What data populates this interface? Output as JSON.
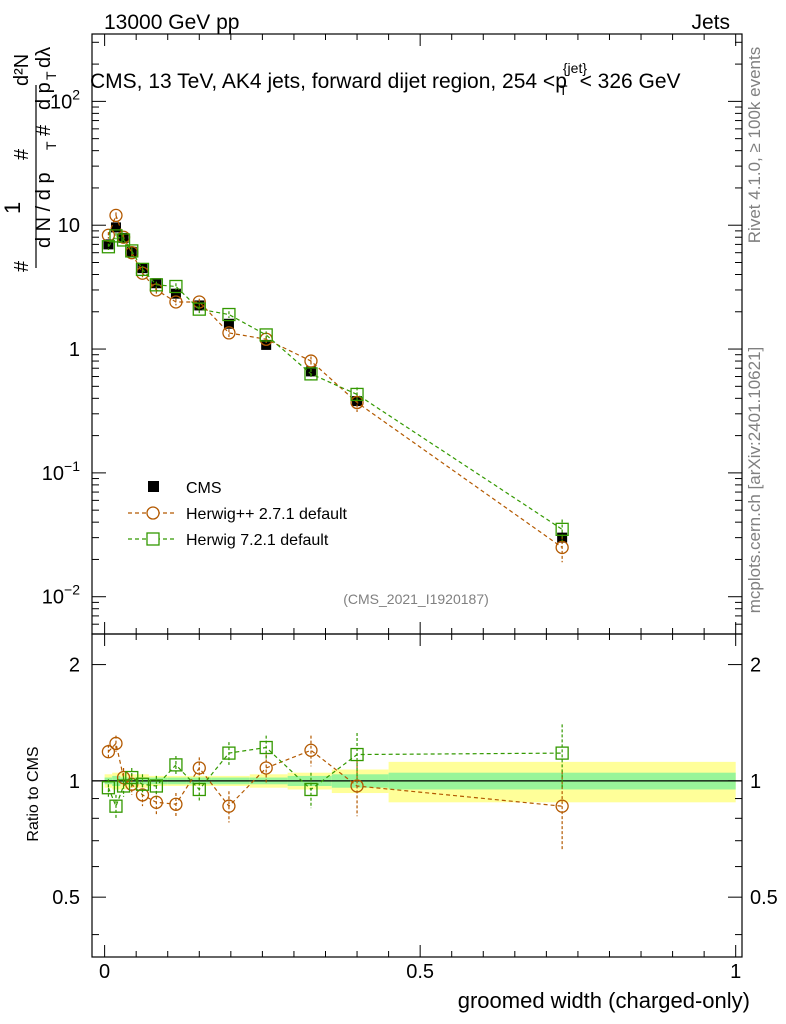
{
  "header": {
    "left": "13000 GeV pp",
    "right": "Jets"
  },
  "side_labels": {
    "rivet": "Rivet 4.1.0, ≥ 100k events",
    "mcplots": "mcplots.cern.ch [arXiv:2401.10621]"
  },
  "watermark": "(CMS_2021_I1920187)",
  "colors": {
    "herwigpp": "#b35900",
    "herwig7": "#339900",
    "cms": "#000000",
    "band_inner": "#99f599",
    "band_outer": "#ffff99"
  },
  "chart_data": {
    "type": "scatter",
    "title": "CMS, 13 TeV, AK4 jets, forward dijet region, 254 <p_T^{jet}< 326 GeV",
    "title_parts": {
      "main": "CMS, 13 TeV, AK4 jets, forward dijet region, 254 <p",
      "sup": "{jet}",
      "sub": "T",
      "end": "< 326 GeV"
    },
    "ylabel": "1/(dN/dp_T) d²N/(dp_T dλ)",
    "ylabel_parts": {
      "hash": "#",
      "one": "1",
      "dN": "d N / d p",
      "T": "T",
      "d2N": "d²N",
      "dpt": "d p",
      "dl": "dλ"
    },
    "xlabel": "groomed width (charged-only)",
    "xlim": [
      -0.02,
      1.01
    ],
    "ylim_main": [
      0.005,
      350
    ],
    "ylim_ratio": [
      0.35,
      2.4
    ],
    "ratio_ylabel": "Ratio to CMS",
    "x_ticks": [
      {
        "v": 0,
        "label": "0"
      },
      {
        "v": 0.5,
        "label": "0.5"
      },
      {
        "v": 1,
        "label": "1"
      }
    ],
    "y_ticks_main": [
      {
        "v": 0.01,
        "base": "10",
        "exp": "−2"
      },
      {
        "v": 0.1,
        "base": "10",
        "exp": "−1"
      },
      {
        "v": 1,
        "base": "1",
        "exp": ""
      },
      {
        "v": 10,
        "base": "10",
        "exp": ""
      },
      {
        "v": 100,
        "base": "10",
        "exp": "2"
      }
    ],
    "y_ticks_ratio": [
      {
        "v": 0.5,
        "label": "0.5"
      },
      {
        "v": 1,
        "label": "1"
      },
      {
        "v": 2,
        "label": "2"
      }
    ],
    "legend": [
      {
        "key": "cms",
        "label": "CMS"
      },
      {
        "key": "herwigpp",
        "label": "Herwig++ 2.7.1 default"
      },
      {
        "key": "herwig7",
        "label": "Herwig 7.2.1 default"
      }
    ],
    "bins": [
      [
        0,
        0.012
      ],
      [
        0.012,
        0.025
      ],
      [
        0.025,
        0.037
      ],
      [
        0.037,
        0.05
      ],
      [
        0.05,
        0.07
      ],
      [
        0.07,
        0.1
      ],
      [
        0.1,
        0.13
      ],
      [
        0.13,
        0.17
      ],
      [
        0.17,
        0.23
      ],
      [
        0.23,
        0.29
      ],
      [
        0.29,
        0.36
      ],
      [
        0.36,
        0.45
      ],
      [
        0.45,
        1.0
      ]
    ],
    "series": [
      {
        "name": "CMS",
        "key": "cms",
        "x": [
          0.006,
          0.018,
          0.03,
          0.043,
          0.06,
          0.082,
          0.113,
          0.15,
          0.197,
          0.256,
          0.327,
          0.4,
          0.725
        ],
        "values": [
          7.0,
          9.6,
          7.9,
          6.1,
          4.5,
          3.4,
          2.8,
          2.25,
          1.6,
          1.08,
          0.66,
          0.38,
          0.03
        ],
        "err": [
          0.4,
          0.5,
          0.4,
          0.3,
          0.25,
          0.2,
          0.15,
          0.1,
          0.08,
          0.06,
          0.04,
          0.03,
          0.003
        ],
        "ratio_stat": [
          0.02,
          0.03,
          0.02,
          0.02,
          0.02,
          0.02,
          0.02,
          0.02,
          0.02,
          0.02,
          0.03,
          0.04,
          0.05
        ],
        "ratio_total": [
          0.04,
          0.05,
          0.05,
          0.04,
          0.04,
          0.03,
          0.03,
          0.03,
          0.03,
          0.04,
          0.05,
          0.07,
          0.12
        ]
      },
      {
        "name": "Herwig++ 2.7.1 default",
        "key": "herwigpp",
        "x": [
          0.006,
          0.018,
          0.03,
          0.043,
          0.06,
          0.082,
          0.113,
          0.15,
          0.197,
          0.256,
          0.327,
          0.4,
          0.725
        ],
        "values": [
          8.3,
          12.0,
          8.0,
          6.0,
          4.1,
          3.0,
          2.4,
          2.4,
          1.35,
          1.2,
          0.8,
          0.37,
          0.025
        ],
        "err": [
          0.5,
          0.7,
          0.5,
          0.4,
          0.3,
          0.2,
          0.15,
          0.15,
          0.1,
          0.08,
          0.07,
          0.06,
          0.006
        ],
        "ratio": [
          1.19,
          1.25,
          1.02,
          0.98,
          0.92,
          0.88,
          0.87,
          1.08,
          0.86,
          1.08,
          1.2,
          0.97,
          0.86
        ],
        "ratio_err": [
          0.05,
          0.06,
          0.06,
          0.06,
          0.06,
          0.06,
          0.06,
          0.07,
          0.08,
          0.09,
          0.11,
          0.16,
          0.2
        ]
      },
      {
        "name": "Herwig 7.2.1 default",
        "key": "herwig7",
        "x": [
          0.006,
          0.018,
          0.03,
          0.043,
          0.06,
          0.082,
          0.113,
          0.15,
          0.197,
          0.256,
          0.327,
          0.4,
          0.725
        ],
        "values": [
          6.7,
          8.2,
          7.6,
          6.2,
          4.4,
          3.3,
          3.2,
          2.1,
          1.9,
          1.3,
          0.63,
          0.43,
          0.035
        ],
        "err": [
          0.4,
          0.5,
          0.4,
          0.4,
          0.3,
          0.2,
          0.2,
          0.15,
          0.12,
          0.09,
          0.06,
          0.06,
          0.007
        ],
        "ratio": [
          0.96,
          0.86,
          0.97,
          1.02,
          0.98,
          0.97,
          1.1,
          0.95,
          1.18,
          1.22,
          0.95,
          1.17,
          1.18
        ],
        "ratio_err": [
          0.05,
          0.06,
          0.06,
          0.06,
          0.06,
          0.06,
          0.06,
          0.07,
          0.08,
          0.09,
          0.1,
          0.16,
          0.22
        ]
      }
    ]
  }
}
